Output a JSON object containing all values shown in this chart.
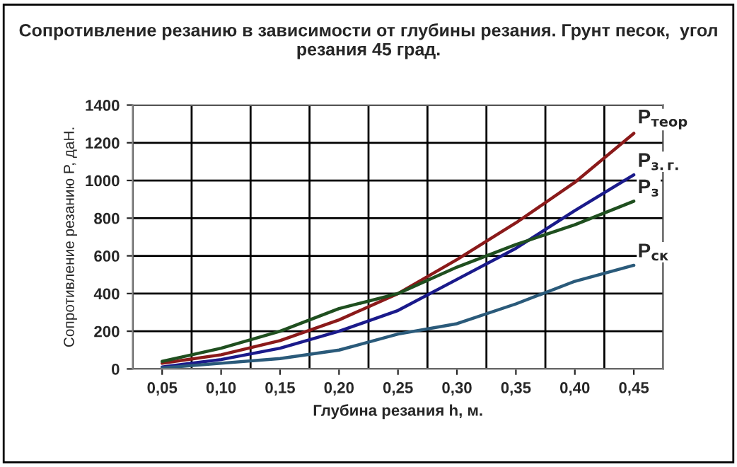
{
  "chart_data": {
    "type": "line",
    "title": "Сопротивление резанию в зависимости от глубины резания. Грунт песок,  угол резания 45 град.",
    "xlabel": "Глубина резания h, м.",
    "ylabel": "Сопротивление резанию P, даН.",
    "categories": [
      "0,05",
      "0,10",
      "0,15",
      "0,20",
      "0,25",
      "0,30",
      "0,35",
      "0,40",
      "0,45"
    ],
    "series": [
      {
        "name": "P$_{теор}$",
        "color": "#8b1a1a",
        "values": [
          30,
          75,
          150,
          260,
          400,
          580,
          775,
          990,
          1250
        ]
      },
      {
        "name": "P$_{з.г.}$",
        "color": "#1a1a8b",
        "values": [
          10,
          50,
          110,
          200,
          310,
          475,
          640,
          840,
          1030
        ]
      },
      {
        "name": "P$_{з}$",
        "color": "#1f4f1f",
        "values": [
          40,
          110,
          200,
          320,
          400,
          540,
          660,
          765,
          890
        ]
      },
      {
        "name": "P$_{ск}$",
        "color": "#2a5a7a",
        "values": [
          5,
          30,
          55,
          100,
          185,
          240,
          345,
          465,
          550
        ]
      }
    ],
    "ylim": [
      0,
      1400
    ],
    "yticks": [
      0,
      200,
      400,
      600,
      800,
      1000,
      1200,
      1400
    ],
    "grid": true,
    "marker": "none",
    "line_style": "solid",
    "legend": false
  }
}
